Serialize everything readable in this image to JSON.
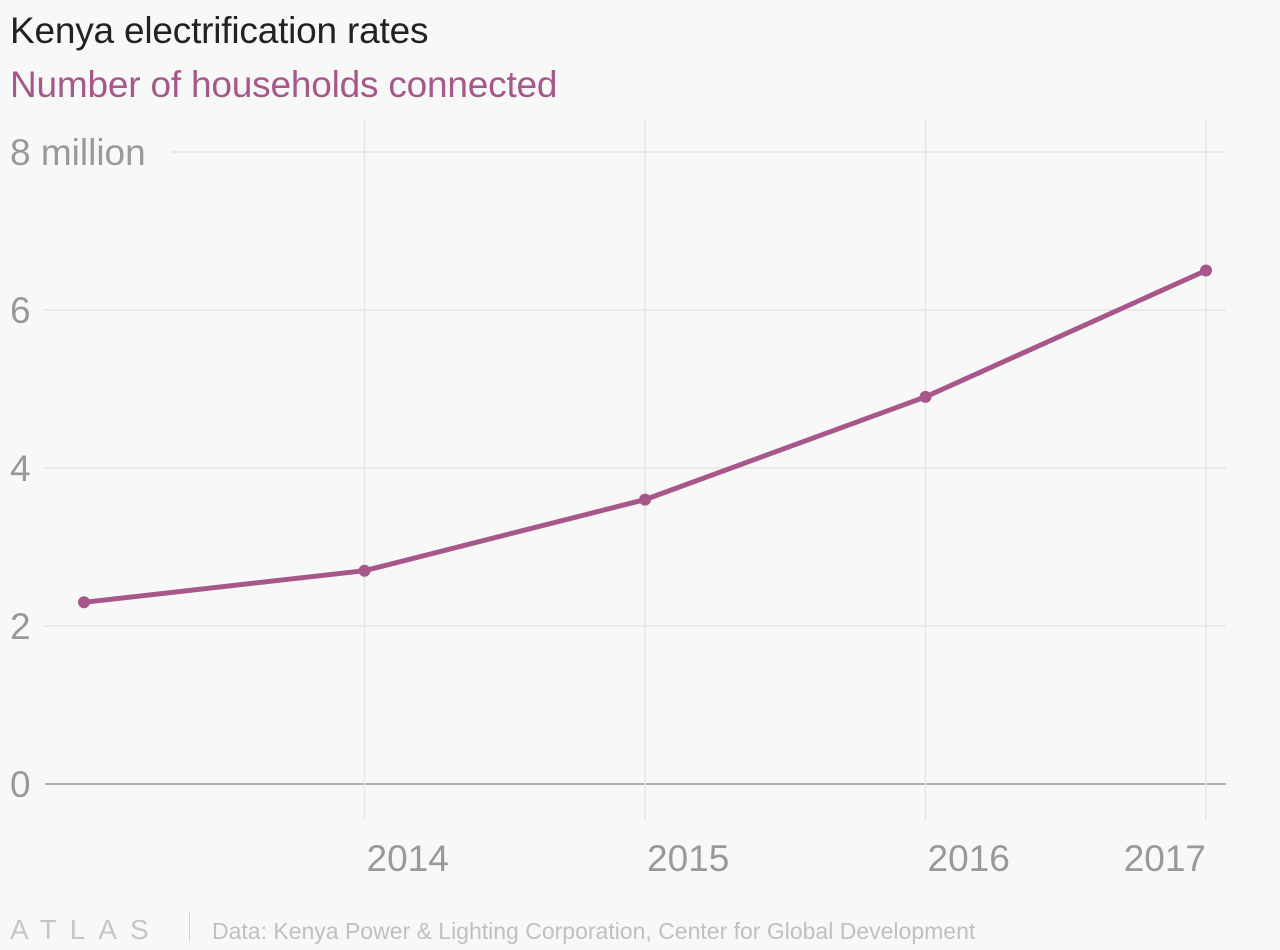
{
  "header": {
    "title": "Kenya electrification rates",
    "subtitle": "Number of households connected"
  },
  "footer": {
    "brand": "ATLAS",
    "source": "Data: Kenya Power & Lighting Corporation, Center for Global Development"
  },
  "colors": {
    "series": "#a7578a",
    "grid": "#e6e6e6",
    "axis": "#999999",
    "background": "#f8f8f8"
  },
  "chart_data": {
    "type": "line",
    "title": "Kenya electrification rates",
    "subtitle": "Number of households connected",
    "xlabel": "",
    "ylabel": "",
    "x": [
      2013,
      2014,
      2015,
      2016,
      2017
    ],
    "x_tick_labels": [
      "2014",
      "2015",
      "2016",
      "2017"
    ],
    "x_tick_values": [
      2014,
      2015,
      2016,
      2017
    ],
    "y_tick_labels": [
      "0",
      "2",
      "4",
      "6",
      "8 million"
    ],
    "y_tick_values": [
      0,
      2,
      4,
      6,
      8
    ],
    "ylim": [
      0,
      8
    ],
    "series": [
      {
        "name": "",
        "values": [
          2.3,
          2.7,
          3.6,
          4.9,
          6.5
        ]
      }
    ],
    "grid": true,
    "legend": "none"
  }
}
